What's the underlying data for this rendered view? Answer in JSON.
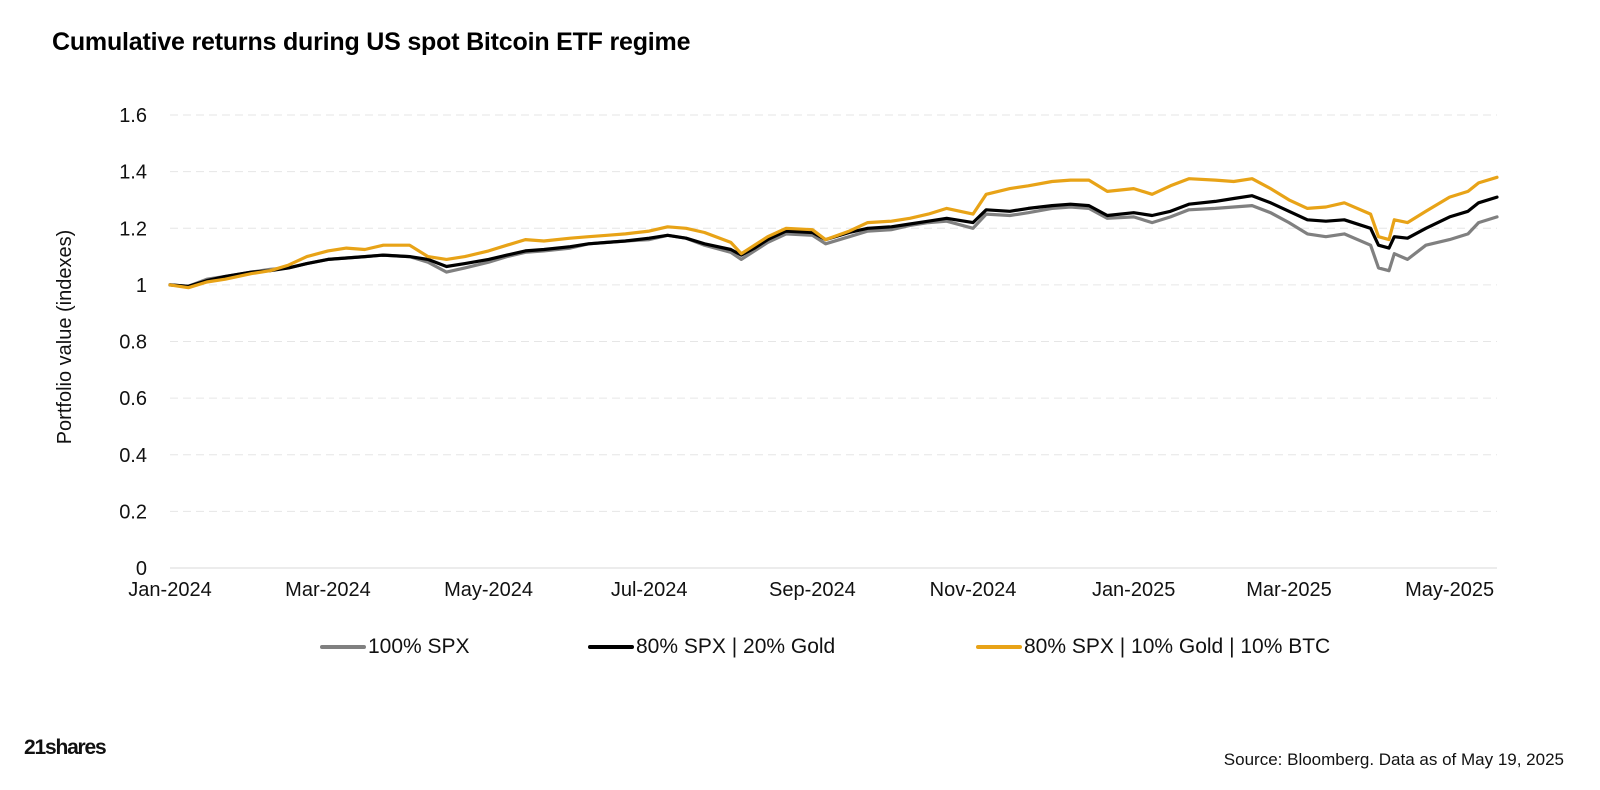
{
  "title": "Cumulative returns during US spot Bitcoin ETF regime",
  "source": "Source: Bloomberg. Data as of May 19, 2025",
  "logo_text": "21shares",
  "colors": {
    "spx": "#808080",
    "spx_gold": "#000000",
    "spx_gold_btc": "#E8A317",
    "grid": "#e6e6e6"
  },
  "legend": [
    {
      "label": "100% SPX",
      "color": "#808080"
    },
    {
      "label": "80% SPX | 20% Gold",
      "color": "#000000"
    },
    {
      "label": "80% SPX | 10% Gold | 10% BTC",
      "color": "#E8A317"
    }
  ],
  "chart_data": {
    "type": "line",
    "title": "Cumulative returns during US spot Bitcoin ETF regime",
    "xlabel": "",
    "ylabel": "Portfolio value (indexes)",
    "ylim": [
      0,
      1.6
    ],
    "yticks": [
      0,
      0.2,
      0.4,
      0.6,
      0.8,
      1,
      1.2,
      1.4,
      1.6
    ],
    "ytick_labels": [
      "0",
      "0.2",
      "0.4",
      "0.6",
      "0.8",
      "1",
      "1.2",
      "1.4",
      "1.6"
    ],
    "xlim": [
      "2024-01-01",
      "2025-05-19"
    ],
    "xticks": [
      {
        "date": "2024-01-01",
        "label": "Jan-2024"
      },
      {
        "date": "2024-03-01",
        "label": "Mar-2024"
      },
      {
        "date": "2024-05-01",
        "label": "May-2024"
      },
      {
        "date": "2024-07-01",
        "label": "Jul-2024"
      },
      {
        "date": "2024-09-01",
        "label": "Sep-2024"
      },
      {
        "date": "2024-11-01",
        "label": "Nov-2024"
      },
      {
        "date": "2025-01-01",
        "label": "Jan-2025"
      },
      {
        "date": "2025-03-01",
        "label": "Mar-2025"
      },
      {
        "date": "2025-05-01",
        "label": "May-2025"
      }
    ],
    "grid": true,
    "legend_position": "bottom",
    "x": [
      "2024-01-01",
      "2024-01-08",
      "2024-01-15",
      "2024-01-22",
      "2024-02-01",
      "2024-02-08",
      "2024-02-15",
      "2024-02-22",
      "2024-03-01",
      "2024-03-08",
      "2024-03-15",
      "2024-03-22",
      "2024-04-01",
      "2024-04-08",
      "2024-04-15",
      "2024-04-22",
      "2024-05-01",
      "2024-05-08",
      "2024-05-15",
      "2024-05-22",
      "2024-06-01",
      "2024-06-08",
      "2024-06-15",
      "2024-06-22",
      "2024-07-01",
      "2024-07-08",
      "2024-07-15",
      "2024-07-22",
      "2024-08-01",
      "2024-08-05",
      "2024-08-10",
      "2024-08-15",
      "2024-08-22",
      "2024-09-01",
      "2024-09-06",
      "2024-09-15",
      "2024-09-22",
      "2024-10-01",
      "2024-10-08",
      "2024-10-15",
      "2024-10-22",
      "2024-11-01",
      "2024-11-06",
      "2024-11-15",
      "2024-11-22",
      "2024-12-01",
      "2024-12-08",
      "2024-12-15",
      "2024-12-22",
      "2025-01-01",
      "2025-01-08",
      "2025-01-15",
      "2025-01-22",
      "2025-02-01",
      "2025-02-08",
      "2025-02-15",
      "2025-02-22",
      "2025-03-01",
      "2025-03-08",
      "2025-03-15",
      "2025-03-22",
      "2025-04-01",
      "2025-04-04",
      "2025-04-08",
      "2025-04-10",
      "2025-04-15",
      "2025-04-22",
      "2025-05-01",
      "2025-05-08",
      "2025-05-12",
      "2025-05-19"
    ],
    "series": [
      {
        "name": "100% SPX",
        "color": "#808080",
        "values": [
          1.0,
          0.995,
          1.02,
          1.03,
          1.045,
          1.055,
          1.06,
          1.075,
          1.09,
          1.095,
          1.1,
          1.105,
          1.1,
          1.08,
          1.045,
          1.06,
          1.08,
          1.1,
          1.115,
          1.12,
          1.13,
          1.145,
          1.15,
          1.155,
          1.16,
          1.175,
          1.165,
          1.14,
          1.115,
          1.09,
          1.12,
          1.15,
          1.18,
          1.175,
          1.145,
          1.17,
          1.19,
          1.195,
          1.21,
          1.22,
          1.225,
          1.2,
          1.25,
          1.245,
          1.255,
          1.27,
          1.275,
          1.27,
          1.235,
          1.24,
          1.22,
          1.24,
          1.265,
          1.27,
          1.275,
          1.28,
          1.255,
          1.22,
          1.18,
          1.17,
          1.18,
          1.14,
          1.06,
          1.05,
          1.11,
          1.09,
          1.14,
          1.16,
          1.18,
          1.22,
          1.24
        ]
      },
      {
        "name": "80% SPX | 20% Gold",
        "color": "#000000",
        "values": [
          1.0,
          0.995,
          1.015,
          1.03,
          1.045,
          1.05,
          1.06,
          1.075,
          1.09,
          1.095,
          1.1,
          1.105,
          1.1,
          1.09,
          1.065,
          1.075,
          1.09,
          1.105,
          1.12,
          1.125,
          1.135,
          1.145,
          1.15,
          1.155,
          1.165,
          1.175,
          1.165,
          1.145,
          1.125,
          1.105,
          1.13,
          1.16,
          1.19,
          1.185,
          1.16,
          1.185,
          1.2,
          1.205,
          1.215,
          1.225,
          1.235,
          1.22,
          1.265,
          1.26,
          1.27,
          1.28,
          1.285,
          1.28,
          1.245,
          1.255,
          1.245,
          1.26,
          1.285,
          1.295,
          1.305,
          1.315,
          1.29,
          1.26,
          1.23,
          1.225,
          1.23,
          1.2,
          1.14,
          1.13,
          1.17,
          1.165,
          1.2,
          1.24,
          1.26,
          1.29,
          1.31
        ]
      },
      {
        "name": "80% SPX | 10% Gold | 10% BTC",
        "color": "#E8A317",
        "values": [
          1.0,
          0.99,
          1.01,
          1.02,
          1.04,
          1.05,
          1.07,
          1.1,
          1.12,
          1.13,
          1.125,
          1.14,
          1.14,
          1.1,
          1.09,
          1.1,
          1.12,
          1.14,
          1.16,
          1.155,
          1.165,
          1.17,
          1.175,
          1.18,
          1.19,
          1.205,
          1.2,
          1.185,
          1.15,
          1.11,
          1.14,
          1.17,
          1.2,
          1.195,
          1.16,
          1.19,
          1.22,
          1.225,
          1.235,
          1.25,
          1.27,
          1.25,
          1.32,
          1.34,
          1.35,
          1.365,
          1.37,
          1.37,
          1.33,
          1.34,
          1.32,
          1.35,
          1.375,
          1.37,
          1.365,
          1.375,
          1.34,
          1.3,
          1.27,
          1.275,
          1.29,
          1.25,
          1.17,
          1.16,
          1.23,
          1.22,
          1.26,
          1.31,
          1.33,
          1.36,
          1.38
        ]
      }
    ]
  }
}
